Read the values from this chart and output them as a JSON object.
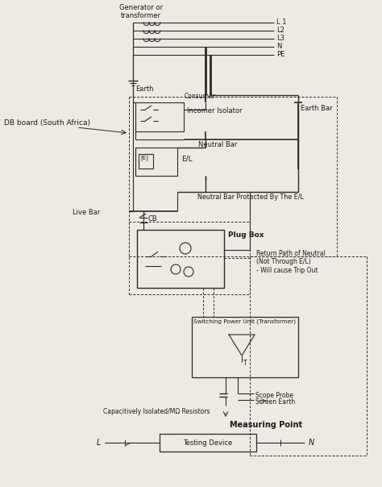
{
  "bg_color": "#edeae3",
  "line_color": "#2a2a2a",
  "text_color": "#1a1a1a",
  "labels": {
    "generator": "Generator or\ntransformer",
    "L1": "L 1",
    "L2": "L2",
    "L3": "L3",
    "N": "N",
    "PE": "PE",
    "earth": "Earth",
    "consumer": "Consumer",
    "db_board": "DB board (South Africa)",
    "incomer": "Incomer Isolator",
    "earth_bar": "Earth Bar",
    "neutral_bar": "Neutral Bar",
    "el": "E/L",
    "live_bar": "Live Bar",
    "cb": "CB",
    "neutral_protected": "Neutral Bar Protected By The E/L",
    "plug_box": "Plug Box",
    "return_path": "Return Path of Neutral\n(Not Through E/L)\n- Will cause Trip Out",
    "switching_power": "Switching Power Unit (Transformer)",
    "scope_probe": "Scope Probe",
    "screen_earth": "Screen Earth",
    "capacitively": "Capacitively Isolated/MΩ Resistors",
    "measuring_point": "Measuring Point",
    "L_label": "L",
    "N_label": "N",
    "testing_device": "Testing Device"
  },
  "figsize": [
    4.74,
    6.04
  ],
  "dpi": 100
}
